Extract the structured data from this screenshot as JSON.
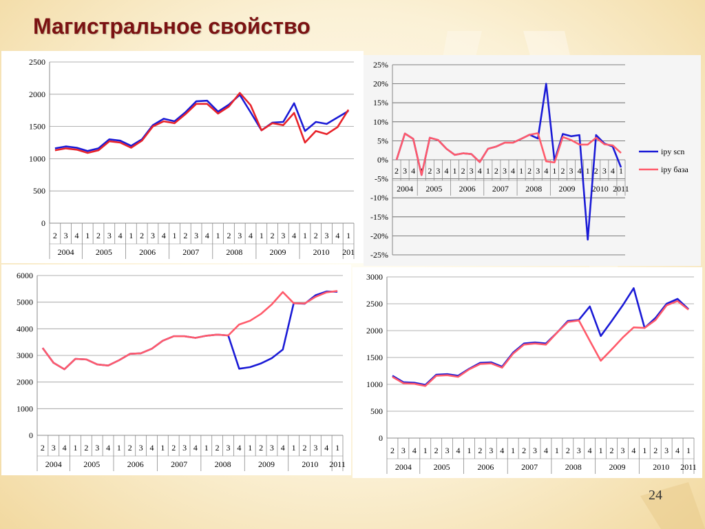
{
  "title": "Магистральное свойство",
  "page_number": "24",
  "colors": {
    "blue": "#1a1ad6",
    "red": "#e8232a",
    "pink": "#ff5a6a",
    "axis": "#888888",
    "title": "#7b1212"
  },
  "chart_data": [
    {
      "type": "line",
      "name": "top-left",
      "quarters": [
        "2",
        "3",
        "4",
        "1",
        "2",
        "3",
        "4",
        "1",
        "2",
        "3",
        "4",
        "1",
        "2",
        "3",
        "4",
        "1",
        "2",
        "3",
        "4",
        "1",
        "2",
        "3",
        "4",
        "1",
        "2",
        "3",
        "4",
        "1"
      ],
      "years": [
        "2004",
        "2005",
        "2006",
        "2007",
        "2008",
        "2009",
        "2010",
        "201"
      ],
      "yticks": [
        "0",
        "500",
        "1000",
        "1500",
        "2000",
        "2500"
      ],
      "ylim": [
        0,
        2500
      ],
      "series": [
        {
          "color": "#1a1ad6",
          "values": [
            1160,
            1190,
            1170,
            1120,
            1160,
            1300,
            1280,
            1200,
            1300,
            1520,
            1620,
            1580,
            1720,
            1890,
            1900,
            1730,
            1840,
            1990,
            1720,
            1440,
            1560,
            1570,
            1860,
            1430,
            1570,
            1540,
            1640,
            1740
          ]
        },
        {
          "color": "#e8232a",
          "values": [
            1130,
            1160,
            1140,
            1090,
            1130,
            1270,
            1250,
            1170,
            1280,
            1500,
            1580,
            1550,
            1690,
            1850,
            1850,
            1700,
            1810,
            2020,
            1830,
            1440,
            1550,
            1520,
            1710,
            1250,
            1430,
            1380,
            1490,
            1760
          ]
        }
      ]
    },
    {
      "type": "line",
      "name": "top-right",
      "quarters": [
        "2",
        "3",
        "4",
        "1",
        "2",
        "3",
        "4",
        "1",
        "2",
        "3",
        "4",
        "1",
        "2",
        "3",
        "4",
        "1",
        "2",
        "3",
        "4",
        "1",
        "2",
        "3",
        "4",
        "1",
        "2",
        "3",
        "4",
        "1"
      ],
      "years": [
        "2004",
        "2005",
        "2006",
        "2007",
        "2008",
        "2009",
        "2010",
        "2011"
      ],
      "yticks": [
        "-25%",
        "-20%",
        "-15%",
        "-10%",
        "-5%",
        "0%",
        "5%",
        "10%",
        "15%",
        "20%",
        "25%"
      ],
      "ylim": [
        -25,
        25
      ],
      "legend": [
        "ipy scn",
        "ipy база"
      ],
      "legend_position": "right",
      "series": [
        {
          "name": "ipy scn",
          "color": "#1a1ad6",
          "values": [
            0,
            6.9,
            5.5,
            -4.0,
            5.8,
            5.2,
            2.9,
            1.3,
            1.7,
            1.5,
            -0.6,
            2.9,
            3.5,
            4.5,
            4.5,
            5.5,
            6.6,
            5.6,
            20.0,
            -0.2,
            6.8,
            6.2,
            6.5,
            -21.0,
            6.5,
            4.3,
            3.5,
            -2.0
          ]
        },
        {
          "name": "ipy база",
          "color": "#ff5a6a",
          "values": [
            0,
            6.9,
            5.5,
            -4.0,
            5.8,
            5.2,
            2.9,
            1.3,
            1.7,
            1.5,
            -0.6,
            2.9,
            3.5,
            4.5,
            4.5,
            5.5,
            6.6,
            7.0,
            -0.4,
            -0.7,
            6.0,
            5.2,
            4.0,
            4.0,
            5.8,
            4.1,
            3.8,
            1.8
          ]
        }
      ]
    },
    {
      "type": "line",
      "name": "bottom-left",
      "quarters": [
        "2",
        "3",
        "4",
        "1",
        "2",
        "3",
        "4",
        "1",
        "2",
        "3",
        "4",
        "1",
        "2",
        "3",
        "4",
        "1",
        "2",
        "3",
        "4",
        "1",
        "2",
        "3",
        "4",
        "1",
        "2",
        "3",
        "4",
        "1"
      ],
      "years": [
        "2004",
        "2005",
        "2006",
        "2007",
        "2008",
        "2009",
        "2010",
        "2011"
      ],
      "yticks": [
        "0",
        "1000",
        "2000",
        "3000",
        "4000",
        "5000",
        "6000"
      ],
      "ylim": [
        0,
        6000
      ],
      "series": [
        {
          "color": "#1a1ad6",
          "values": [
            3280,
            2720,
            2480,
            2870,
            2850,
            2660,
            2620,
            2820,
            3060,
            3080,
            3250,
            3550,
            3720,
            3720,
            3660,
            3740,
            3780,
            3750,
            2500,
            2560,
            2700,
            2900,
            3220,
            4960,
            4940,
            5260,
            5400,
            5390
          ]
        },
        {
          "color": "#ff5a6a",
          "values": [
            3280,
            2720,
            2480,
            2870,
            2850,
            2660,
            2620,
            2820,
            3060,
            3080,
            3250,
            3550,
            3720,
            3720,
            3660,
            3740,
            3780,
            3750,
            4160,
            4300,
            4560,
            4920,
            5380,
            4960,
            4950,
            5200,
            5370,
            5420
          ]
        }
      ]
    },
    {
      "type": "line",
      "name": "bottom-right",
      "quarters": [
        "2",
        "3",
        "4",
        "1",
        "2",
        "3",
        "4",
        "1",
        "2",
        "3",
        "4",
        "1",
        "2",
        "3",
        "4",
        "1",
        "2",
        "3",
        "4",
        "1",
        "2",
        "3",
        "4",
        "1",
        "2",
        "3",
        "4",
        "1"
      ],
      "years": [
        "2004",
        "2005",
        "2006",
        "2007",
        "2008",
        "2009",
        "2010",
        "2011"
      ],
      "yticks": [
        "0",
        "500",
        "1000",
        "1500",
        "2000",
        "2500",
        "3000"
      ],
      "ylim": [
        0,
        3000
      ],
      "series": [
        {
          "color": "#1a1ad6",
          "values": [
            1160,
            1040,
            1030,
            990,
            1180,
            1190,
            1160,
            1290,
            1400,
            1410,
            1330,
            1590,
            1760,
            1780,
            1760,
            1960,
            2180,
            2200,
            2450,
            1900,
            2180,
            2470,
            2790,
            2050,
            2240,
            2500,
            2590,
            2400
          ]
        },
        {
          "color": "#ff5a6a",
          "values": [
            1140,
            1020,
            1010,
            970,
            1160,
            1170,
            1140,
            1280,
            1380,
            1390,
            1310,
            1570,
            1740,
            1760,
            1740,
            1960,
            2160,
            2190,
            1810,
            1440,
            1650,
            1870,
            2060,
            2050,
            2200,
            2470,
            2550,
            2390
          ]
        }
      ]
    }
  ]
}
